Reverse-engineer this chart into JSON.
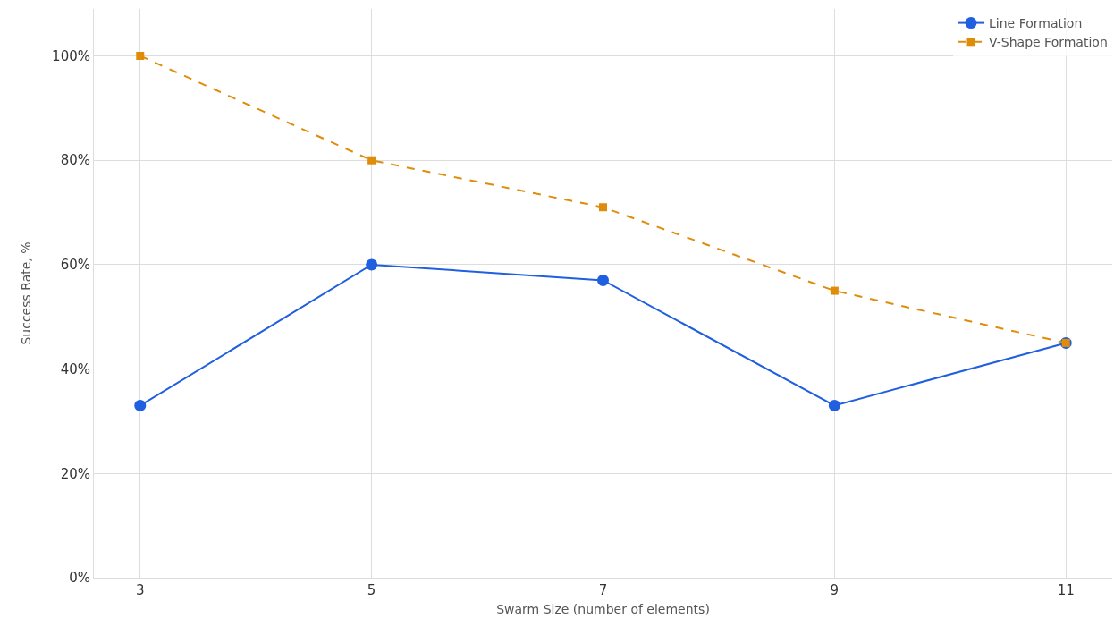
{
  "chart_data": {
    "type": "line",
    "xlabel": "Swarm Size (number of elements)",
    "ylabel": "Success Rate, %",
    "x": [
      3,
      5,
      7,
      9,
      11
    ],
    "series": [
      {
        "name": "Line Formation",
        "color": "#1f5fe0",
        "values": [
          33,
          60,
          57,
          33,
          45
        ],
        "marker": "circle",
        "line_style": "solid"
      },
      {
        "name": "V-Shape Formation",
        "color": "#e08c0b",
        "values": [
          100,
          80,
          71,
          55,
          45
        ],
        "marker": "square",
        "line_style": "dashed"
      }
    ],
    "xlim": [
      2.6,
      11.4
    ],
    "xticks": [
      3,
      5,
      7,
      9,
      11
    ],
    "ylim": [
      0,
      109
    ],
    "yticks": [
      {
        "value": 0,
        "label": "0%"
      },
      {
        "value": 20,
        "label": "20%"
      },
      {
        "value": 40,
        "label": "40%"
      },
      {
        "value": 60,
        "label": "60%"
      },
      {
        "value": 80,
        "label": "80%"
      },
      {
        "value": 100,
        "label": "100%"
      }
    ],
    "grid": true,
    "legend": "top right"
  }
}
